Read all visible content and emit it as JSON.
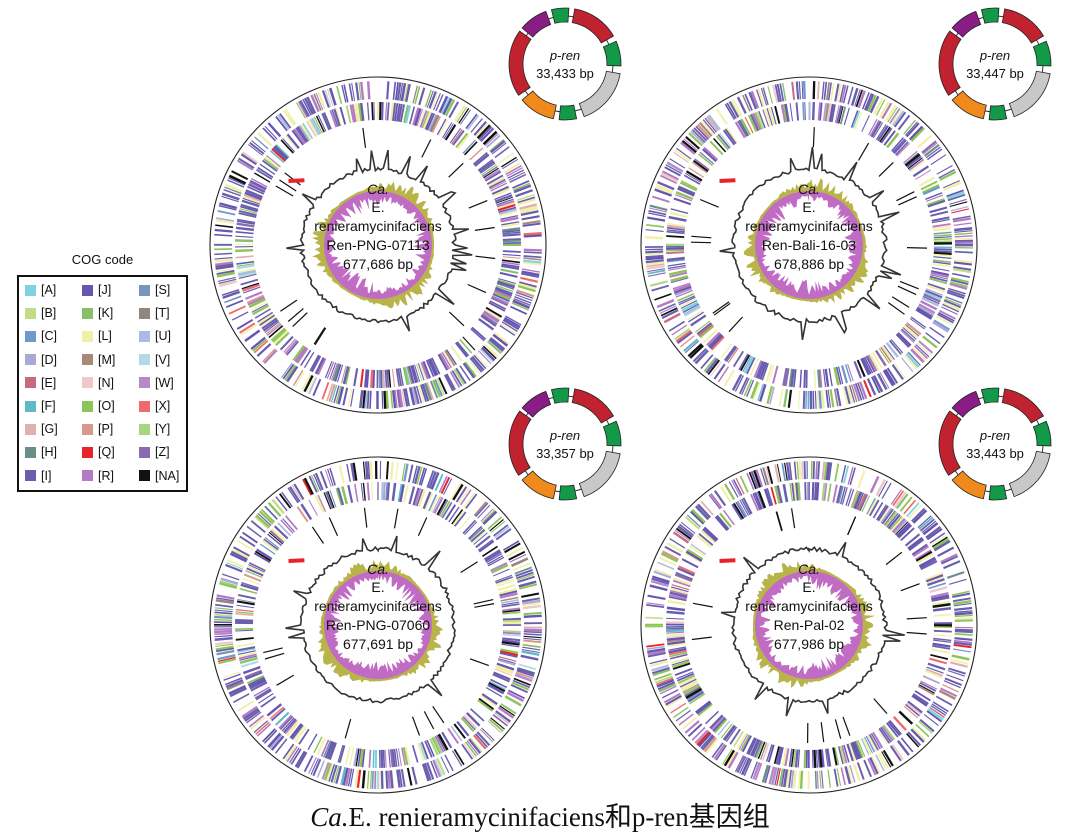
{
  "figure": {
    "caption_italic": "Ca.",
    "caption_rest": "E. renieramycinifaciens和p-ren基因组"
  },
  "legend": {
    "title": "COG code",
    "items": [
      {
        "code": "[A]",
        "color": "#7fd3e0"
      },
      {
        "code": "[B]",
        "color": "#c2dd84"
      },
      {
        "code": "[C]",
        "color": "#6f98cc"
      },
      {
        "code": "[D]",
        "color": "#aaa8d6"
      },
      {
        "code": "[E]",
        "color": "#c96a7e"
      },
      {
        "code": "[F]",
        "color": "#5fb9c9"
      },
      {
        "code": "[G]",
        "color": "#e0b0b0"
      },
      {
        "code": "[H]",
        "color": "#6b8e8a"
      },
      {
        "code": "[I]",
        "color": "#6a5fae"
      },
      {
        "code": "[J]",
        "color": "#6656b0"
      },
      {
        "code": "[K]",
        "color": "#86c06a"
      },
      {
        "code": "[L]",
        "color": "#f2f0a8"
      },
      {
        "code": "[M]",
        "color": "#a88a78"
      },
      {
        "code": "[N]",
        "color": "#f0c8c8"
      },
      {
        "code": "[O]",
        "color": "#8cc45a"
      },
      {
        "code": "[P]",
        "color": "#d79a8a"
      },
      {
        "code": "[Q]",
        "color": "#e8232a"
      },
      {
        "code": "[R]",
        "color": "#b57ac4"
      },
      {
        "code": "[S]",
        "color": "#7a94c0"
      },
      {
        "code": "[T]",
        "color": "#948480"
      },
      {
        "code": "[U]",
        "color": "#a8bde0"
      },
      {
        "code": "[V]",
        "color": "#b0dbe6"
      },
      {
        "code": "[W]",
        "color": "#b68ac8"
      },
      {
        "code": "[X]",
        "color": "#ef6a6a"
      },
      {
        "code": "[Y]",
        "color": "#a6d67e"
      },
      {
        "code": "[Z]",
        "color": "#8a6ab0"
      },
      {
        "code": "[NA]",
        "color": "#111111"
      }
    ]
  },
  "genomes": [
    {
      "line1": "Ca.",
      "line2": "E.",
      "line3": "renieramycinifaciens",
      "strain": "Ren-PNG-07113",
      "size": "677,686 bp"
    },
    {
      "line1": "Ca.",
      "line2": "E.",
      "line3": "renieramycinifaciens",
      "strain": "Ren-Bali-16-03",
      "size": "678,886 bp"
    },
    {
      "line1": "Ca.",
      "line2": "E.",
      "line3": "renieramycinifaciens",
      "strain": "Ren-PNG-07060",
      "size": "677,691 bp"
    },
    {
      "line1": "Ca.",
      "line2": "E.",
      "line3": "renieramycinifaciens",
      "strain": "Ren-Pal-02",
      "size": "677,986 bp"
    }
  ],
  "plasmids": [
    {
      "name": "p-ren",
      "size": "33,433 bp"
    },
    {
      "name": "p-ren",
      "size": "33,447 bp"
    },
    {
      "name": "p-ren",
      "size": "33,357 bp"
    },
    {
      "name": "p-ren",
      "size": "33,443 bp"
    }
  ],
  "plasmid_colors": {
    "red": "#c1222f",
    "purple": "#8a1c86",
    "green": "#139a48",
    "orange": "#f08a1c",
    "gray": "#c8c8c8"
  }
}
